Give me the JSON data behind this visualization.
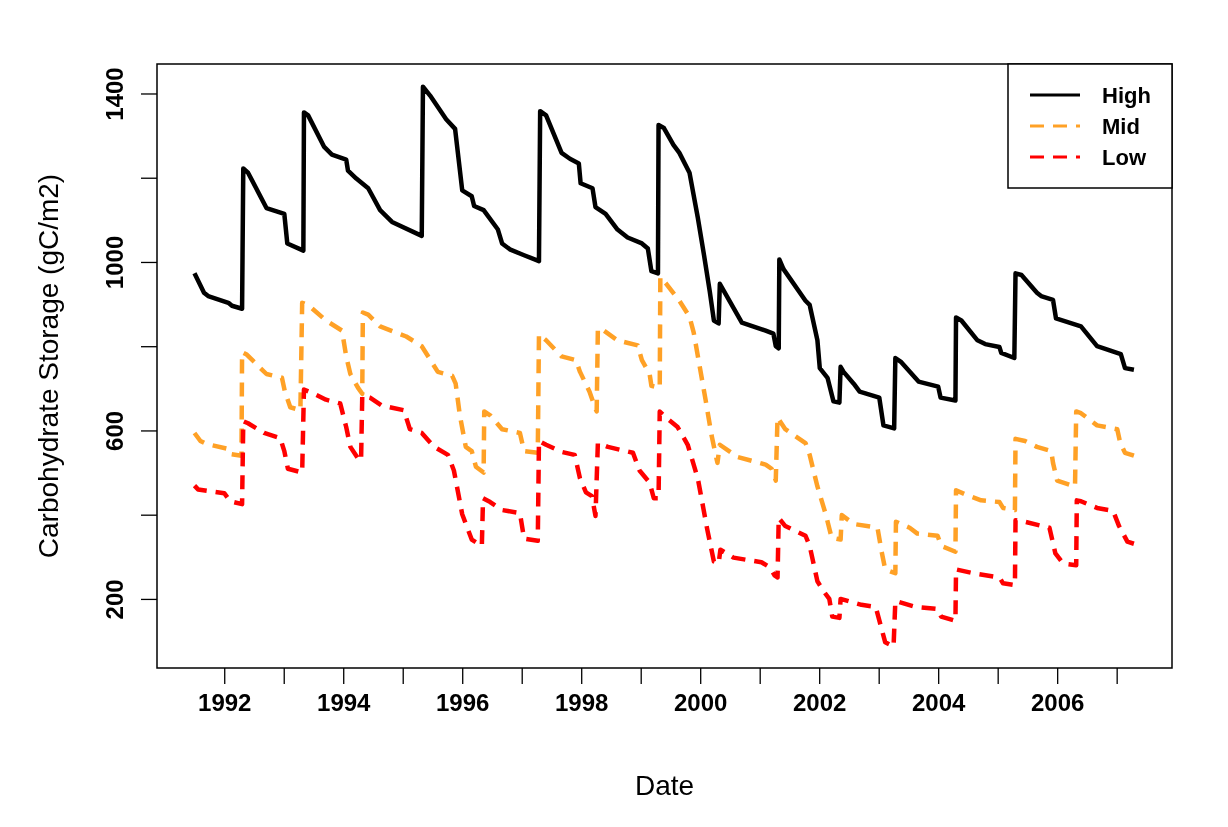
{
  "chart_data": {
    "type": "line",
    "xlabel": "Date",
    "ylabel": "Carbohydrate Storage (gC/m2)",
    "xlim": [
      1990.87,
      2007.93
    ],
    "ylim": [
      36,
      1470
    ],
    "xticks": [
      {
        "value": 1992,
        "label": "1992"
      },
      {
        "value": 1993,
        "label": null
      },
      {
        "value": 1994,
        "label": "1994"
      },
      {
        "value": 1995,
        "label": null
      },
      {
        "value": 1996,
        "label": "1996"
      },
      {
        "value": 1997,
        "label": null
      },
      {
        "value": 1998,
        "label": "1998"
      },
      {
        "value": 1999,
        "label": null
      },
      {
        "value": 2000,
        "label": "2000"
      },
      {
        "value": 2001,
        "label": null
      },
      {
        "value": 2002,
        "label": "2002"
      },
      {
        "value": 2003,
        "label": null
      },
      {
        "value": 2004,
        "label": "2004"
      },
      {
        "value": 2005,
        "label": null
      },
      {
        "value": 2006,
        "label": "2006"
      },
      {
        "value": 2007,
        "label": null
      }
    ],
    "yticks": [
      200,
      {
        "value": 400,
        "label": null
      },
      600,
      {
        "value": 800,
        "label": null
      },
      1000,
      {
        "value": 1200,
        "label": null
      },
      1400
    ],
    "legend": "top right",
    "grid": false,
    "series": [
      {
        "name": "High",
        "color": "#000000",
        "line_style": "solid",
        "x": [
          1991.5,
          1991.66,
          1991.73,
          1992.07,
          1992.13,
          1992.3,
          1992.32,
          1992.4,
          1992.71,
          1993.01,
          1993.06,
          1993.33,
          1993.34,
          1993.41,
          1993.68,
          1993.81,
          1994.05,
          1994.08,
          1994.22,
          1994.42,
          1994.62,
          1994.82,
          1995.32,
          1995.34,
          1995.46,
          1995.73,
          1995.88,
          1996.0,
          1996.16,
          1996.2,
          1996.36,
          1996.6,
          1996.67,
          1996.8,
          1997.04,
          1997.29,
          1997.31,
          1997.41,
          1997.67,
          1997.81,
          1997.96,
          1997.99,
          1998.19,
          1998.24,
          1998.41,
          1998.61,
          1998.78,
          1999.02,
          1999.12,
          1999.18,
          1999.29,
          1999.3,
          1999.39,
          1999.55,
          1999.65,
          1999.82,
          1999.96,
          2000.06,
          2000.16,
          2000.23,
          2000.31,
          2000.33,
          2000.7,
          2001.1,
          2001.23,
          2001.27,
          2001.32,
          2001.33,
          2001.4,
          2001.77,
          2001.84,
          2001.97,
          2002.01,
          2002.14,
          2002.24,
          2002.34,
          2002.36,
          2002.41,
          2002.58,
          2002.68,
          2003.01,
          2003.08,
          2003.26,
          2003.28,
          2003.38,
          2003.67,
          2004.0,
          2004.04,
          2004.29,
          2004.3,
          2004.39,
          2004.66,
          2004.79,
          2005.03,
          2005.06,
          2005.28,
          2005.3,
          2005.4,
          2005.66,
          2005.73,
          2005.93,
          2005.98,
          2006.4,
          2006.67,
          2007.07,
          2007.14,
          2007.29
        ],
        "values": [
          973,
          927,
          919,
          903,
          896,
          889,
          1222,
          1212,
          1128,
          1114,
          1044,
          1027,
          1355,
          1348,
          1273,
          1255,
          1243,
          1217,
          1198,
          1175,
          1123,
          1095,
          1062,
          1416,
          1395,
          1339,
          1316,
          1170,
          1156,
          1133,
          1123,
          1077,
          1044,
          1030,
          1016,
          1002,
          1358,
          1348,
          1259,
          1245,
          1234,
          1187,
          1175,
          1130,
          1114,
          1077,
          1058,
          1044,
          1032,
          978,
          973,
          1325,
          1318,
          1278,
          1259,
          1212,
          1105,
          1020,
          931,
          861,
          854,
          948,
          856,
          837,
          830,
          800,
          795,
          1006,
          983,
          908,
          898,
          814,
          748,
          725,
          669,
          666,
          751,
          739,
          711,
          692,
          678,
          612,
          605,
          772,
          762,
          716,
          704,
          678,
          671,
          868,
          861,
          814,
          805,
          798,
          784,
          772,
          973,
          969,
          927,
          919,
          910,
          866,
          847,
          800,
          781,
          748,
          744
        ]
      },
      {
        "name": "Mid",
        "color": "#ffa126",
        "line_style": "dashed",
        "x": [
          1991.5,
          1991.6,
          1991.7,
          1992.07,
          1992.1,
          1992.29,
          1992.3,
          1992.37,
          1992.71,
          1992.97,
          1993.02,
          1993.11,
          1993.28,
          1993.31,
          1993.41,
          1993.71,
          1993.98,
          1994.05,
          1994.12,
          1994.25,
          1994.32,
          1994.33,
          1994.42,
          1994.62,
          1995.06,
          1995.32,
          1995.59,
          1995.83,
          1995.89,
          1995.96,
          1996.06,
          1996.16,
          1996.23,
          1996.36,
          1996.37,
          1996.47,
          1996.67,
          1996.97,
          1997.04,
          1997.27,
          1997.29,
          1997.41,
          1997.67,
          1997.91,
          1997.98,
          1998.14,
          1998.23,
          1998.26,
          1998.28,
          1998.38,
          1998.61,
          1998.95,
          1999.02,
          1999.15,
          1999.18,
          1999.32,
          1999.33,
          1999.42,
          1999.65,
          1999.82,
          1999.89,
          2000.09,
          2000.19,
          2000.26,
          2000.29,
          2000.33,
          2000.63,
          2001.1,
          2001.2,
          2001.27,
          2001.3,
          2001.43,
          2001.77,
          2001.84,
          2001.97,
          2002.11,
          2002.21,
          2002.36,
          2002.38,
          2002.58,
          2002.98,
          2003.05,
          2003.11,
          2003.28,
          2003.29,
          2003.52,
          2003.65,
          2003.99,
          2004.05,
          2004.29,
          2004.3,
          2004.46,
          2004.72,
          2005.03,
          2005.09,
          2005.29,
          2005.3,
          2005.46,
          2005.66,
          2005.9,
          2005.93,
          2006.0,
          2006.3,
          2006.32,
          2006.4,
          2006.67,
          2007.01,
          2007.06,
          2007.14,
          2007.29
        ],
        "values": [
          594,
          575,
          568,
          556,
          544,
          540,
          786,
          781,
          734,
          725,
          692,
          655,
          648,
          903,
          898,
          861,
          837,
          776,
          734,
          701,
          687,
          880,
          875,
          847,
          823,
          800,
          739,
          730,
          711,
          636,
          561,
          551,
          514,
          500,
          645,
          636,
          603,
          594,
          551,
          547,
          828,
          814,
          776,
          767,
          739,
          692,
          655,
          645,
          842,
          837,
          814,
          802,
          767,
          734,
          706,
          701,
          964,
          950,
          908,
          870,
          833,
          673,
          589,
          542,
          523,
          566,
          537,
          519,
          509,
          481,
          631,
          603,
          570,
          542,
          467,
          401,
          345,
          341,
          399,
          378,
          369,
          312,
          270,
          261,
          383,
          369,
          355,
          350,
          326,
          312,
          458,
          448,
          434,
          430,
          416,
          411,
          580,
          575,
          561,
          551,
          523,
          481,
          467,
          645,
          641,
          612,
          603,
          570,
          547,
          540
        ]
      },
      {
        "name": "Low",
        "color": "#ff0000",
        "line_style": "dashed",
        "x": [
          1991.5,
          1991.56,
          1992.0,
          1992.1,
          1992.3,
          1992.32,
          1992.4,
          1992.67,
          1992.94,
          1993.01,
          1993.07,
          1993.31,
          1993.34,
          1993.51,
          1993.71,
          1993.95,
          1994.05,
          1994.12,
          1994.25,
          1994.3,
          1994.32,
          1994.45,
          1994.65,
          1995.02,
          1995.12,
          1995.32,
          1995.53,
          1995.76,
          1995.86,
          1996.0,
          1996.16,
          1996.33,
          1996.35,
          1996.47,
          1996.67,
          1996.97,
          1997.04,
          1997.27,
          1997.29,
          1997.41,
          1997.67,
          1997.89,
          1997.98,
          1998.08,
          1998.18,
          1998.24,
          1998.28,
          1998.45,
          1998.87,
          1998.98,
          1999.15,
          1999.22,
          1999.3,
          1999.32,
          1999.42,
          1999.62,
          1999.79,
          1999.96,
          2000.12,
          2000.23,
          2000.31,
          2000.34,
          2000.56,
          2001.03,
          2001.17,
          2001.25,
          2001.3,
          2001.32,
          2001.43,
          2001.77,
          2001.84,
          2001.97,
          2002.07,
          2002.17,
          2002.22,
          2002.34,
          2002.36,
          2002.71,
          2002.95,
          2003.11,
          2003.25,
          2003.28,
          2003.62,
          2003.99,
          2004.05,
          2004.29,
          2004.3,
          2004.59,
          2005.03,
          2005.09,
          2005.29,
          2005.3,
          2005.46,
          2005.87,
          2005.97,
          2006.1,
          2006.32,
          2006.33,
          2006.4,
          2006.67,
          2006.94,
          2007.04,
          2007.18,
          2007.29
        ],
        "values": [
          469,
          460,
          451,
          432,
          425,
          622,
          617,
          594,
          582,
          551,
          509,
          500,
          697,
          687,
          673,
          664,
          608,
          561,
          533,
          528,
          683,
          678,
          659,
          648,
          603,
          594,
          561,
          542,
          505,
          401,
          341,
          326,
          439,
          430,
          411,
          404,
          343,
          338,
          575,
          566,
          549,
          542,
          486,
          453,
          444,
          397,
          570,
          561,
          547,
          505,
          476,
          439,
          439,
          645,
          631,
          608,
          566,
          486,
          364,
          289,
          284,
          317,
          298,
          287,
          275,
          256,
          251,
          392,
          373,
          350,
          326,
          242,
          219,
          200,
          158,
          155,
          200,
          186,
          181,
          97,
          87,
          195,
          181,
          176,
          158,
          148,
          270,
          261,
          251,
          237,
          233,
          387,
          383,
          369,
          308,
          284,
          280,
          434,
          432,
          416,
          409,
          373,
          336,
          331
        ]
      }
    ]
  }
}
